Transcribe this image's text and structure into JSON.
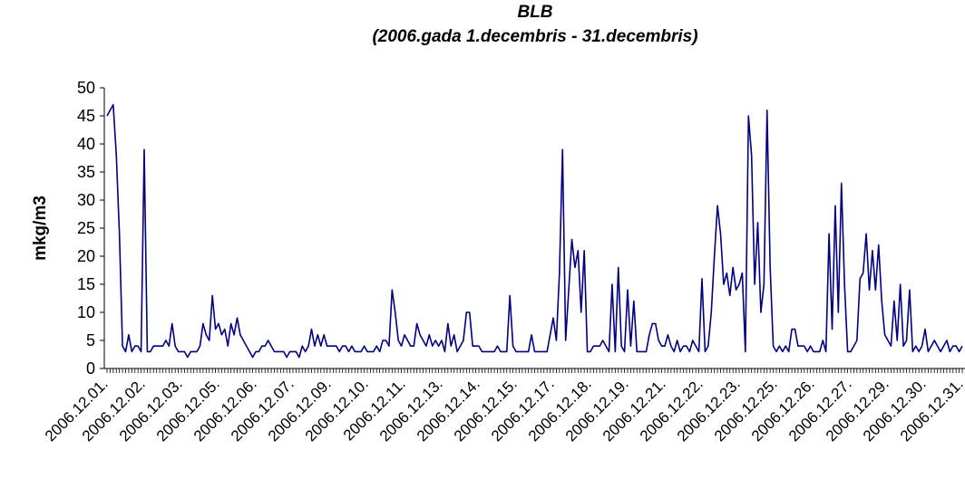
{
  "chart_data": {
    "type": "line",
    "title": "BLB",
    "subtitle": "(2006.gada 1.decembris - 31.decembris)",
    "y_label": "mkg/m3",
    "ylim": [
      0,
      50
    ],
    "yticks": [
      0,
      5,
      10,
      15,
      20,
      25,
      30,
      35,
      40,
      45,
      50
    ],
    "grid": false,
    "categories": [
      "2006.12.01.",
      null,
      null,
      null,
      null,
      null,
      null,
      null,
      null,
      null,
      null,
      null,
      "2006.12.02.",
      null,
      null,
      null,
      null,
      null,
      null,
      null,
      null,
      null,
      null,
      null,
      "2006.12.03.",
      null,
      null,
      null,
      null,
      null,
      null,
      null,
      null,
      null,
      null,
      null,
      "2006.12.05.",
      null,
      null,
      null,
      null,
      null,
      null,
      null,
      null,
      null,
      null,
      null,
      "2006.12.06.",
      null,
      null,
      null,
      null,
      null,
      null,
      null,
      null,
      null,
      null,
      null,
      "2006.12.07.",
      null,
      null,
      null,
      null,
      null,
      null,
      null,
      null,
      null,
      null,
      null,
      "2006.12.09.",
      null,
      null,
      null,
      null,
      null,
      null,
      null,
      null,
      null,
      null,
      null,
      "2006.12.10.",
      null,
      null,
      null,
      null,
      null,
      null,
      null,
      null,
      null,
      null,
      null,
      "2006.12.11.",
      null,
      null,
      null,
      null,
      null,
      null,
      null,
      null,
      null,
      null,
      null,
      "2006.12.13.",
      null,
      null,
      null,
      null,
      null,
      null,
      null,
      null,
      null,
      null,
      null,
      "2006.12.14.",
      null,
      null,
      null,
      null,
      null,
      null,
      null,
      null,
      null,
      null,
      null,
      "2006.12.15.",
      null,
      null,
      null,
      null,
      null,
      null,
      null,
      null,
      null,
      null,
      null,
      "2006.12.17.",
      null,
      null,
      null,
      null,
      null,
      null,
      null,
      null,
      null,
      null,
      null,
      "2006.12.18.",
      null,
      null,
      null,
      null,
      null,
      null,
      null,
      null,
      null,
      null,
      null,
      "2006.12.19.",
      null,
      null,
      null,
      null,
      null,
      null,
      null,
      null,
      null,
      null,
      null,
      "2006.12.21.",
      null,
      null,
      null,
      null,
      null,
      null,
      null,
      null,
      null,
      null,
      null,
      "2006.12.22.",
      null,
      null,
      null,
      null,
      null,
      null,
      null,
      null,
      null,
      null,
      null,
      "2006.12.23.",
      null,
      null,
      null,
      null,
      null,
      null,
      null,
      null,
      null,
      null,
      null,
      "2006.12.25.",
      null,
      null,
      null,
      null,
      null,
      null,
      null,
      null,
      null,
      null,
      null,
      "2006.12.26.",
      null,
      null,
      null,
      null,
      null,
      null,
      null,
      null,
      null,
      null,
      null,
      "2006.12.27.",
      null,
      null,
      null,
      null,
      null,
      null,
      null,
      null,
      null,
      null,
      null,
      "2006.12.29.",
      null,
      null,
      null,
      null,
      null,
      null,
      null,
      null,
      null,
      null,
      null,
      "2006.12.30.",
      null,
      null,
      null,
      null,
      null,
      null,
      null,
      null,
      null,
      null,
      null,
      "2006.12.31."
    ],
    "series": [
      {
        "name": "BLB",
        "color": "#000080",
        "values": [
          45,
          46,
          47,
          38,
          24,
          4,
          3,
          6,
          3,
          4,
          4,
          3,
          39,
          3,
          3,
          4,
          4,
          4,
          4,
          5,
          4,
          8,
          4,
          3,
          3,
          3,
          2,
          3,
          3,
          3,
          4,
          8,
          6,
          5,
          13,
          7,
          8,
          6,
          7,
          4,
          8,
          6,
          9,
          6,
          5,
          4,
          3,
          2,
          3,
          3,
          4,
          4,
          5,
          4,
          3,
          3,
          3,
          3,
          2,
          3,
          3,
          3,
          2,
          4,
          3,
          4,
          7,
          4,
          6,
          4,
          6,
          4,
          4,
          4,
          4,
          3,
          4,
          4,
          3,
          4,
          3,
          3,
          3,
          4,
          3,
          3,
          3,
          4,
          3,
          5,
          5,
          4,
          14,
          10,
          5,
          4,
          6,
          5,
          4,
          4,
          8,
          6,
          5,
          4,
          6,
          4,
          5,
          4,
          5,
          3,
          8,
          4,
          6,
          3,
          4,
          5,
          10,
          10,
          4,
          4,
          4,
          3,
          3,
          3,
          3,
          3,
          4,
          3,
          3,
          3,
          13,
          4,
          3,
          3,
          3,
          3,
          3,
          6,
          3,
          3,
          3,
          3,
          3,
          6,
          9,
          5,
          17,
          39,
          5,
          14,
          23,
          18,
          21,
          10,
          21,
          3,
          3,
          4,
          4,
          4,
          5,
          4,
          3,
          15,
          3,
          18,
          4,
          3,
          14,
          4,
          12,
          3,
          3,
          3,
          3,
          6,
          8,
          8,
          5,
          4,
          4,
          6,
          4,
          3,
          5,
          3,
          4,
          4,
          3,
          5,
          4,
          3,
          16,
          3,
          4,
          10,
          20,
          29,
          24,
          15,
          17,
          13,
          18,
          14,
          15,
          17,
          3,
          45,
          38,
          15,
          26,
          10,
          15,
          46,
          18,
          4,
          3,
          4,
          3,
          4,
          3,
          7,
          7,
          4,
          4,
          4,
          3,
          4,
          3,
          3,
          3,
          5,
          3,
          24,
          7,
          29,
          10,
          33,
          15,
          3,
          3,
          4,
          5,
          16,
          17,
          24,
          14,
          21,
          14,
          22,
          12,
          6,
          5,
          4,
          12,
          5,
          15,
          4,
          5,
          14,
          3,
          4,
          3,
          4,
          7,
          3,
          4,
          5,
          4,
          3,
          4,
          5,
          3,
          4,
          4,
          3,
          4
        ]
      }
    ]
  }
}
